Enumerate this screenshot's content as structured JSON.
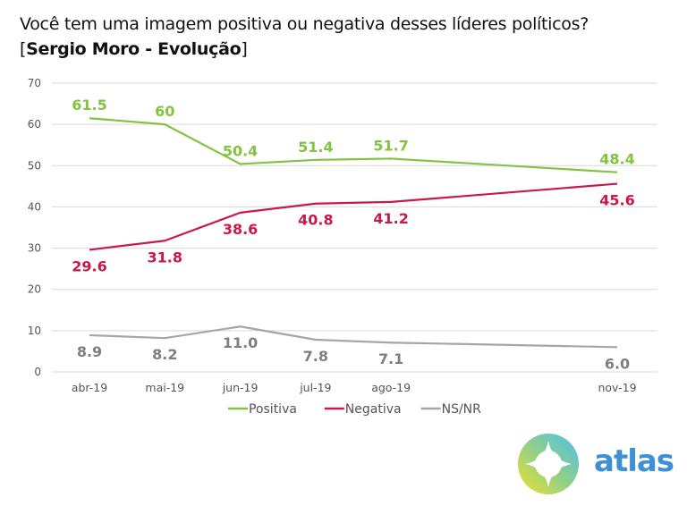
{
  "header": {
    "question": "Você tem uma imagem positiva ou negativa desses líderes políticos?",
    "subtitle_open": "[",
    "subtitle_bold": "Sergio Moro - Evolução",
    "subtitle_close": "]"
  },
  "brand": {
    "name": "atlas",
    "color": "#3d8fd6"
  },
  "chart_data": {
    "type": "line",
    "title": "Você tem uma imagem positiva ou negativa desses líderes políticos? [Sergio Moro - Evolução]",
    "xlabel": "",
    "ylabel": "",
    "categories": [
      "abr-19",
      "mai-19",
      "jun-19",
      "jul-19",
      "ago-19",
      "nov-19"
    ],
    "x_months": [
      4,
      5,
      6,
      7,
      8,
      11
    ],
    "ylim": [
      0,
      70
    ],
    "yticks": [
      0,
      10,
      20,
      30,
      40,
      50,
      60,
      70
    ],
    "grid": true,
    "legend_position": "bottom",
    "series": [
      {
        "name": "Positiva",
        "color": "#82c341",
        "values": [
          61.5,
          60,
          50.4,
          51.4,
          51.7,
          48.4
        ],
        "labels": [
          "61.5",
          "60",
          "50.4",
          "51.4",
          "51.7",
          "48.4"
        ],
        "label_position": "above"
      },
      {
        "name": "Negativa",
        "color": "#c8194b",
        "values": [
          29.6,
          31.8,
          38.6,
          40.8,
          41.2,
          45.6
        ],
        "labels": [
          "29.6",
          "31.8",
          "38.6",
          "40.8",
          "41.2",
          "45.6"
        ],
        "label_position": "below"
      },
      {
        "name": "NS/NR",
        "color": "#a6a6a6",
        "values": [
          8.9,
          8.2,
          11.0,
          7.8,
          7.1,
          6.0
        ],
        "labels": [
          "8.9",
          "8.2",
          "11.0",
          "7.8",
          "7.1",
          "6.0"
        ],
        "label_position": "below",
        "label_color": "#7f7f7f"
      }
    ]
  }
}
